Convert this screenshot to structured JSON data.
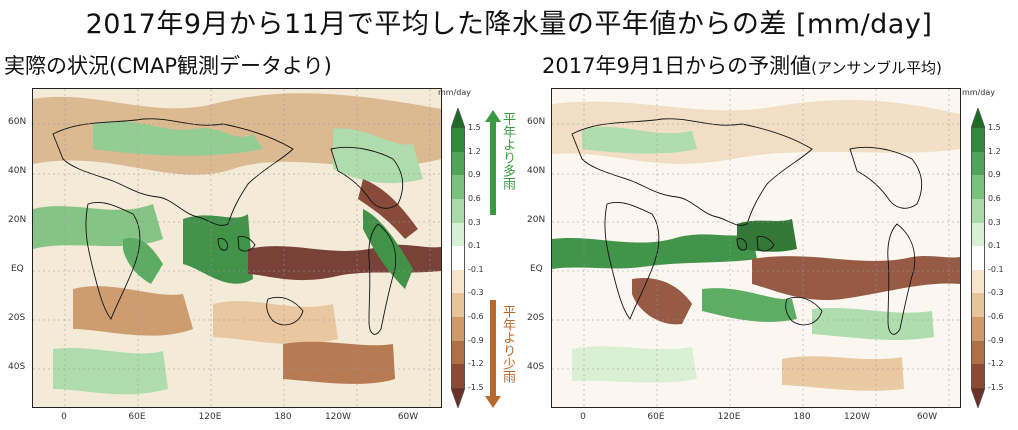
{
  "title": "2017年9月から11月で平均した降水量の平年値からの差 [mm/day]",
  "left_subtitle": "実際の状況(CMAP観測データより)",
  "right_subtitle": "2017年9月1日からの予測値",
  "right_subtitle_note": "(アンサンブル平均)",
  "unit_label": "mm/day",
  "lat_ticks": [
    "60N",
    "40N",
    "20N",
    "EQ",
    "20S",
    "40S"
  ],
  "lon_ticks": [
    "0",
    "60E",
    "120E",
    "180",
    "120W",
    "60W"
  ],
  "colorbar_levels": [
    "1.5",
    "1.2",
    "0.9",
    "0.6",
    "0.3",
    "0.1",
    "-0.1",
    "-0.3",
    "-0.6",
    "-0.9",
    "-1.2",
    "-1.5"
  ],
  "colorbar_colors": [
    "#1e6b24",
    "#2f8a3a",
    "#4ea557",
    "#78c27c",
    "#a8dba8",
    "#d6f0d3",
    "#ffffff",
    "#f6e4cc",
    "#e8c49a",
    "#cf9a68",
    "#b07045",
    "#8c4a33",
    "#6b3028"
  ],
  "wet_label": "平年より多雨",
  "dry_label": "平年より少雨",
  "wet_color": "#3a9a3f",
  "dry_color": "#b86a2e"
}
